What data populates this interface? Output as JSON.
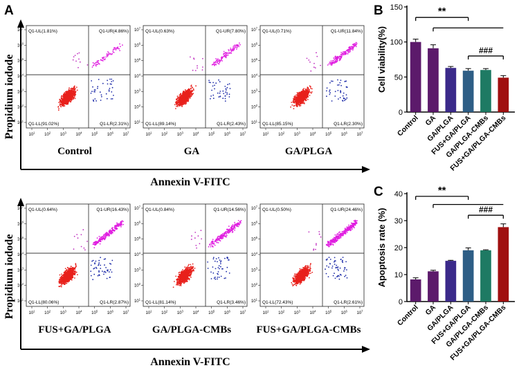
{
  "panel_a": {
    "letter": "A",
    "ylabel": "Propidium iodode",
    "xlabel": "Annexin V-FITC",
    "x_ticks": [
      "10^1",
      "10^2",
      "10^3",
      "10^4",
      "10^5",
      "10^6",
      "10^7"
    ],
    "y_ticks": [
      "10^1",
      "10^2",
      "10^3",
      "10^4",
      "10^5",
      "10^6",
      "10^7"
    ],
    "plots": [
      {
        "name": "Control",
        "UL": "Q1-UL(1.81%)",
        "UR": "Q1-UR(4.86%)",
        "LL": "Q1-LL(91.02%)",
        "LR": "Q1-LR(2.31%)"
      },
      {
        "name": "GA",
        "UL": "Q1-UL(0.63%)",
        "UR": "Q1-UR(7.80%)",
        "LL": "Q1-LL(89.14%)",
        "LR": "Q1-LR(2.43%)"
      },
      {
        "name": "GA/PLGA",
        "UL": "Q1-UL(0.71%)",
        "UR": "Q1-UR(11.84%)",
        "LL": "Q1-LL(85.15%)",
        "LR": "Q1-LR(2.30%)"
      },
      {
        "name": "FUS+GA/PLGA",
        "UL": "Q1-UL(0.64%)",
        "UR": "Q1-UR(16.43%)",
        "LL": "Q1-LL(80.06%)",
        "LR": "Q1-LR(2.87%)"
      },
      {
        "name": "GA/PLGA-CMBs",
        "UL": "Q1-UL(0.84%)",
        "UR": "Q1-UR(14.56%)",
        "LL": "Q1-LL(81.14%)",
        "LR": "Q1-LR(3.46%)"
      },
      {
        "name": "FUS+GA/PLGA-CMBs",
        "UL": "Q1-UL(0.50%)",
        "UR": "Q1-UR(24.46%)",
        "LL": "Q1-LL(72.43%)",
        "LR": "Q1-LR(2.61%)"
      }
    ]
  },
  "chart_data": [
    {
      "panel": "B",
      "type": "bar",
      "ylabel": "Cell viability(%)",
      "ylim": [
        0,
        150
      ],
      "yticks": [
        0,
        50,
        100,
        150
      ],
      "categories": [
        "Control",
        "GA",
        "GA/PLGA",
        "FUS+GA/PLGA",
        "GA/PLGA-CMBs",
        "FUS+GA/PLGA-CMBs"
      ],
      "values": [
        100,
        91,
        63,
        59,
        60,
        49
      ],
      "errors": [
        4,
        5,
        2,
        3,
        2,
        3
      ],
      "colors": [
        "#5c1a6b",
        "#5c1a6b",
        "#3b2a8a",
        "#2e5e86",
        "#1e7a63",
        "#a01010"
      ],
      "annotations": [
        {
          "label": "**",
          "from": 0,
          "to": 3,
          "level": 135
        },
        {
          "label": "",
          "from": 1,
          "to": 5,
          "level": 120
        },
        {
          "label": "###",
          "from": 3,
          "to": 5,
          "level": 80
        }
      ]
    },
    {
      "panel": "C",
      "type": "bar",
      "ylabel": "Apoptosis rate (%)",
      "ylim": [
        0,
        40
      ],
      "yticks": [
        0,
        10,
        20,
        30,
        40
      ],
      "categories": [
        "Control",
        "GA",
        "GA/PLGA",
        "FUS+GA/PLGA",
        "GA/PLGA-CMBs",
        "FUS+GA/PLGA-CMBs"
      ],
      "values": [
        8.2,
        11.2,
        15.1,
        19,
        19,
        27.6
      ],
      "errors": [
        0.6,
        0.4,
        0.2,
        0.9,
        0.2,
        1.2
      ],
      "colors": [
        "#5c1a6b",
        "#5c1a6b",
        "#3b2a8a",
        "#2e5e86",
        "#1e7a63",
        "#a01010"
      ],
      "annotations": [
        {
          "label": "**",
          "from": 0,
          "to": 3,
          "level": 39
        },
        {
          "label": "",
          "from": 1,
          "to": 5,
          "level": 36
        },
        {
          "label": "###",
          "from": 3,
          "to": 5,
          "level": 32
        }
      ]
    }
  ],
  "colors": {
    "ll": "#e8211c",
    "ur": "#e01ee0",
    "lr": "#1c2aa8",
    "ul": "#c030c0"
  }
}
